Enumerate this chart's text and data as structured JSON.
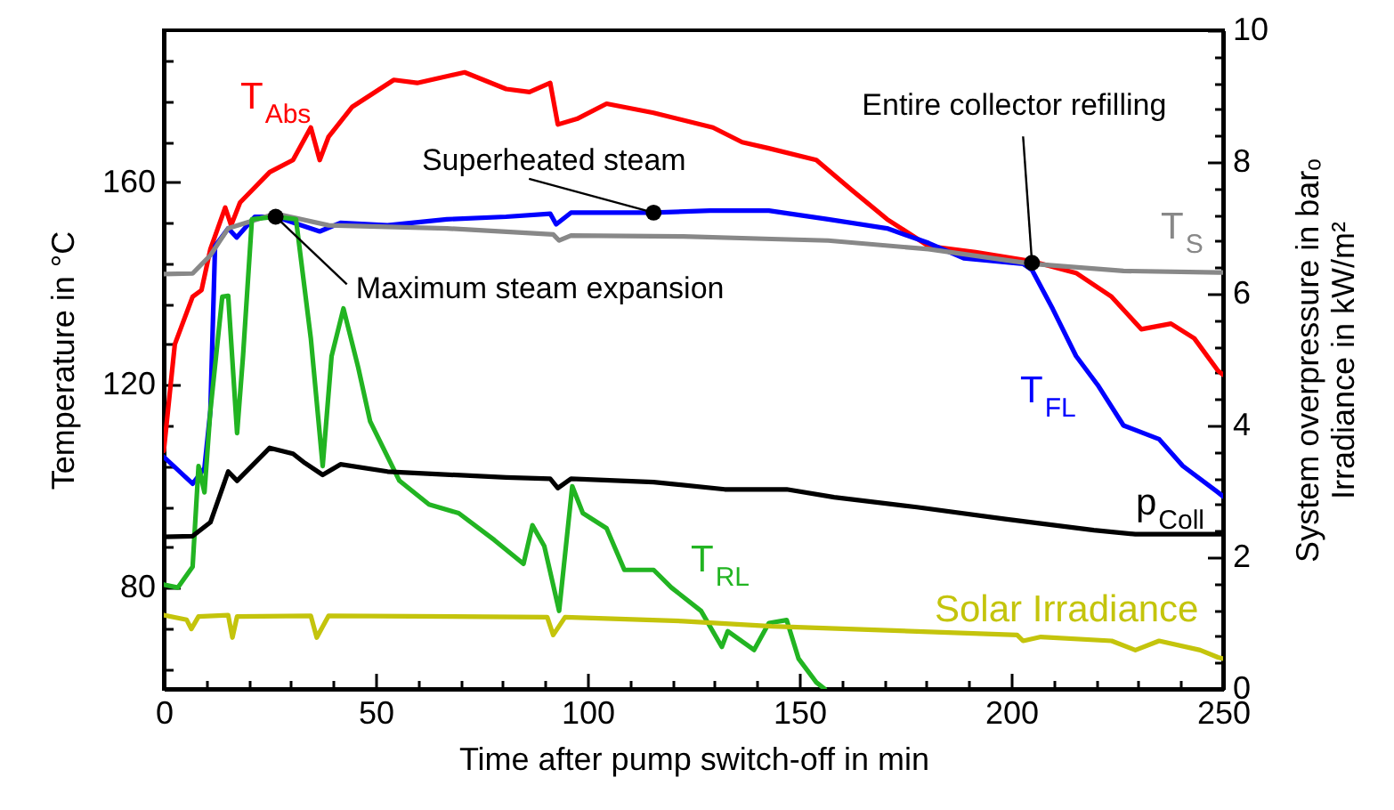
{
  "chart_data": {
    "type": "line",
    "xlabel": "Time after pump switch-off in min",
    "ylabel": "Temperature in °C",
    "y2label": "System overpressure in barₒ\nIrradiance in kW/m²",
    "xlim": [
      0,
      250
    ],
    "xticks": [
      0,
      {
        "value": 10,
        "label": null
      },
      {
        "value": 20,
        "label": null
      },
      {
        "value": 30,
        "label": null
      },
      {
        "value": 40,
        "label": null
      },
      50,
      {
        "value": 60,
        "label": null
      },
      {
        "value": 70,
        "label": null
      },
      {
        "value": 80,
        "label": null
      },
      {
        "value": 90,
        "label": null
      },
      100,
      {
        "value": 110,
        "label": null
      },
      {
        "value": 120,
        "label": null
      },
      {
        "value": 130,
        "label": null
      },
      {
        "value": 140,
        "label": null
      },
      150,
      {
        "value": 160,
        "label": null
      },
      {
        "value": 170,
        "label": null
      },
      {
        "value": 180,
        "label": null
      },
      {
        "value": 190,
        "label": null
      },
      200,
      {
        "value": 210,
        "label": null
      },
      {
        "value": 220,
        "label": null
      },
      {
        "value": 230,
        "label": null
      },
      {
        "value": 240,
        "label": null
      },
      250
    ],
    "ylim": [
      60,
      190
    ],
    "yticks": [
      {
        "value": 64,
        "label": null
      },
      {
        "value": 72,
        "label": null
      },
      80,
      {
        "value": 88,
        "label": null
      },
      {
        "value": 96,
        "label": null
      },
      {
        "value": 104,
        "label": null
      },
      {
        "value": 112,
        "label": null
      },
      120,
      {
        "value": 128,
        "label": null
      },
      {
        "value": 136,
        "label": null
      },
      {
        "value": 144,
        "label": null
      },
      {
        "value": 152,
        "label": null
      },
      160,
      {
        "value": 168,
        "label": null
      },
      {
        "value": 176,
        "label": null
      },
      {
        "value": 184,
        "label": null
      }
    ],
    "y2lim": [
      0,
      10
    ],
    "y2ticks": [
      0,
      {
        "value": 0.4,
        "label": null
      },
      {
        "value": 0.8,
        "label": null
      },
      {
        "value": 1.2,
        "label": null
      },
      {
        "value": 1.6,
        "label": null
      },
      2,
      {
        "value": 2.4,
        "label": null
      },
      {
        "value": 2.8,
        "label": null
      },
      {
        "value": 3.2,
        "label": null
      },
      {
        "value": 3.6,
        "label": null
      },
      4,
      {
        "value": 4.4,
        "label": null
      },
      {
        "value": 4.8,
        "label": null
      },
      {
        "value": 5.2,
        "label": null
      },
      {
        "value": 5.6,
        "label": null
      },
      6,
      {
        "value": 6.4,
        "label": null
      },
      {
        "value": 6.8,
        "label": null
      },
      {
        "value": 7.2,
        "label": null
      },
      {
        "value": 7.6,
        "label": null
      },
      8,
      {
        "value": 8.4,
        "label": null
      },
      {
        "value": 8.8,
        "label": null
      },
      {
        "value": 9.2,
        "label": null
      },
      {
        "value": 9.6,
        "label": null
      },
      10
    ],
    "series": [
      {
        "name": "T$_{Abs}$",
        "color": "#ff0000",
        "x": [
          0,
          2.6,
          6.8,
          8.9,
          11,
          14.5,
          15.9,
          18,
          25,
          30.5,
          34.7,
          36.8,
          38.9,
          44.5,
          54.3,
          59.8,
          71,
          80.8,
          86.3,
          91.2,
          93,
          97.5,
          104.5,
          115.6,
          129.6,
          136.5,
          142.8,
          154,
          162.3,
          170.7,
          180.5,
          191.6,
          204.9,
          215.3,
          223.7,
          230.7,
          237.7,
          243.2,
          248.8,
          250
        ],
        "values": [
          107,
          128,
          137.4,
          138.7,
          146.8,
          155,
          151.5,
          156,
          162,
          164.4,
          170.8,
          164.4,
          169,
          174.9,
          180.2,
          179.6,
          181.7,
          178.4,
          177.8,
          179.6,
          171.4,
          172.5,
          175.5,
          173.7,
          170.8,
          167.9,
          166.7,
          164.4,
          158.5,
          152.7,
          147.4,
          146.2,
          144.4,
          142.1,
          137.4,
          131,
          132.1,
          129.2,
          122.8,
          122
        ]
      },
      {
        "name": "T$_{FL}$",
        "color": "#0000ff",
        "x": [
          0,
          6.8,
          9.6,
          11,
          12.1,
          15.2,
          17.2,
          21.5,
          26.4,
          36.8,
          41.7,
          52.8,
          66.8,
          80.8,
          91.2,
          92.6,
          96.1,
          115.6,
          128.9,
          142.8,
          156.8,
          170.7,
          180.5,
          188.8,
          202.8,
          204.9,
          209.8,
          215.3,
          220.4,
          226.5,
          234.9,
          240.5,
          248.8,
          250
        ],
        "values": [
          105.8,
          100.5,
          103.6,
          115,
          147.4,
          150.9,
          149.1,
          153.2,
          153.2,
          150.3,
          152,
          151.5,
          152.7,
          153.2,
          153.8,
          151.7,
          154,
          154,
          154.4,
          154.4,
          152.7,
          150.9,
          148,
          145,
          143.9,
          142.7,
          135,
          125.7,
          120,
          112,
          109.3,
          104,
          98.8,
          98
        ]
      },
      {
        "name": "T$_{S}$",
        "color": "#888888",
        "x": [
          0,
          6.8,
          11,
          15.2,
          26.4,
          38.9,
          66.8,
          91.9,
          93.3,
          96.1,
          122.6,
          143.5,
          156.8,
          180.5,
          204.9,
          226.5,
          248.8,
          250
        ],
        "values": [
          141.9,
          142,
          145.6,
          150.9,
          153.8,
          151.5,
          150.9,
          149.7,
          148.5,
          149.5,
          149.3,
          148.8,
          148.5,
          146.8,
          143.9,
          142.5,
          142.2,
          142.2
        ]
      },
      {
        "name": "T$_{RL}$",
        "color": "#22b422",
        "x": [
          0,
          3.3,
          6.8,
          8.2,
          9.6,
          11,
          13.8,
          15.2,
          17.3,
          18.7,
          20.8,
          26.4,
          31.2,
          34.7,
          37.5,
          39.6,
          42.4,
          45.9,
          48.7,
          55.6,
          62.6,
          69.6,
          78,
          84.9,
          87,
          89.8,
          93.3,
          96.4,
          98.9,
          104.5,
          108.7,
          115.6,
          119.8,
          126.8,
          131.7,
          133.1,
          139.3,
          142.8,
          147,
          149.8,
          154,
          156
        ],
        "values": [
          80.6,
          80,
          84.1,
          104,
          98.8,
          115,
          137.4,
          137.6,
          110.5,
          125.7,
          152.7,
          153.2,
          152.7,
          129.2,
          104,
          125.7,
          135.1,
          123.4,
          112.8,
          101.1,
          96.4,
          94.7,
          89.4,
          84.7,
          92.3,
          88.2,
          75.4,
          100,
          94.7,
          91.7,
          83.5,
          83.5,
          80,
          75.4,
          68.3,
          71.4,
          67.7,
          73,
          73.6,
          66,
          61.3,
          60
        ]
      },
      {
        "name": "p$_{Coll}$",
        "color": "#000000",
        "axis": "y2",
        "x": [
          0,
          6.8,
          11,
          15.2,
          17.3,
          25,
          30.5,
          33.3,
          37.5,
          41.7,
          52.8,
          80.8,
          91.2,
          93,
          96.1,
          115.6,
          132.4,
          147,
          158.2,
          177.7,
          198.6,
          219.5,
          229.3,
          248.8,
          250
        ],
        "values": [
          2.31,
          2.32,
          2.53,
          3.3,
          3.16,
          3.66,
          3.57,
          3.43,
          3.25,
          3.41,
          3.3,
          3.21,
          3.19,
          3.05,
          3.19,
          3.14,
          3.03,
          3.03,
          2.91,
          2.76,
          2.58,
          2.41,
          2.35,
          2.35,
          2.35
        ]
      },
      {
        "name": "Solar Irradiance",
        "color": "#c4c40c",
        "axis": "y2",
        "x": [
          0,
          5.4,
          6.5,
          8.2,
          15.2,
          16.2,
          17.3,
          34.7,
          36.1,
          38.9,
          90.5,
          91.9,
          94.7,
          122.6,
          143.5,
          170.7,
          201.4,
          202.8,
          207,
          223.7,
          229.3,
          234.9,
          244.6,
          248.8,
          250
        ],
        "values": [
          1.12,
          1.05,
          0.91,
          1.1,
          1.12,
          0.78,
          1.1,
          1.11,
          0.78,
          1.11,
          1.09,
          0.82,
          1.09,
          1.03,
          0.95,
          0.89,
          0.82,
          0.73,
          0.79,
          0.73,
          0.59,
          0.73,
          0.59,
          0.48,
          0.46
        ]
      }
    ],
    "annotations": [
      {
        "text": "Superheated steam",
        "x": 115.6,
        "y": 154
      },
      {
        "text": "Maximum steam expansion",
        "x": 26.4,
        "y": 153.2
      },
      {
        "text": "Entire collector refilling",
        "x": 204.9,
        "y": 144.1
      }
    ]
  }
}
